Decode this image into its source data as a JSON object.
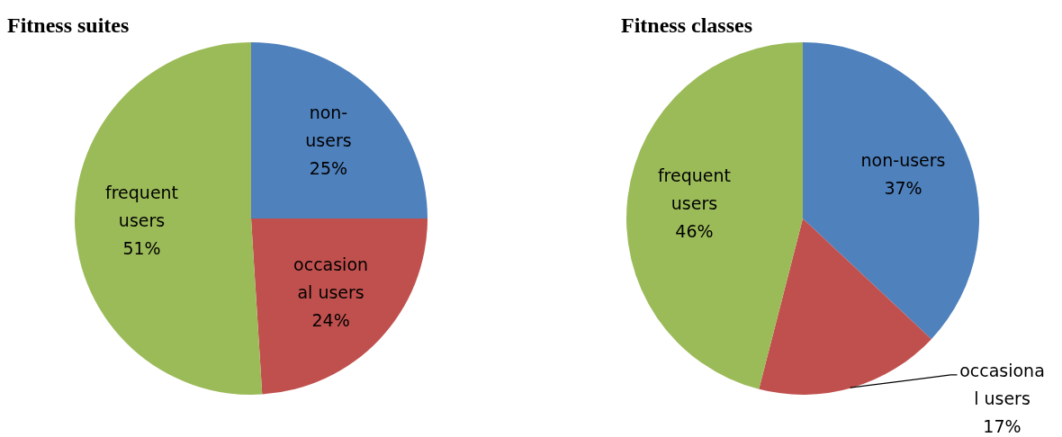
{
  "chart_data": [
    {
      "type": "pie",
      "title": "Fitness suites",
      "categories": [
        "non-users",
        "occasional users",
        "frequent users"
      ],
      "values": [
        25,
        24,
        51
      ],
      "value_labels": [
        "25%",
        "24%",
        "51%"
      ],
      "colors": [
        "#4f81bd",
        "#c0504d",
        "#9bbb59"
      ]
    },
    {
      "type": "pie",
      "title": "Fitness classes",
      "categories": [
        "non-users",
        "occasional users",
        "frequent users"
      ],
      "values": [
        37,
        17,
        46
      ],
      "value_labels": [
        "37%",
        "17%",
        "46%"
      ],
      "colors": [
        "#4f81bd",
        "#c0504d",
        "#9bbb59"
      ]
    }
  ]
}
